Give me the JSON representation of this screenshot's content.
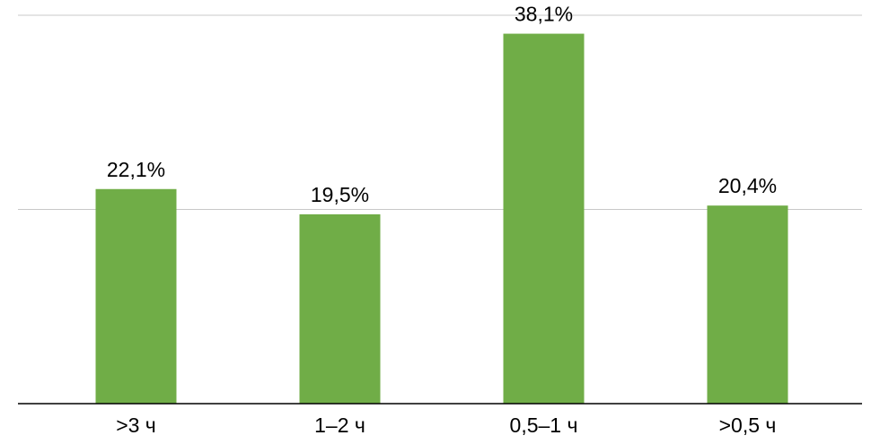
{
  "chart_data": {
    "type": "bar",
    "categories": [
      ">3 ч",
      "1–2 ч",
      "0,5–1 ч",
      ">0,5 ч"
    ],
    "values": [
      22.1,
      19.5,
      38.1,
      20.4
    ],
    "value_labels": [
      "22,1%",
      "19,5%",
      "38,1%",
      "20,4%"
    ],
    "color": "#70ad47",
    "ylim": [
      0,
      40
    ],
    "yticks": [
      0,
      20,
      40
    ],
    "grid": true
  }
}
